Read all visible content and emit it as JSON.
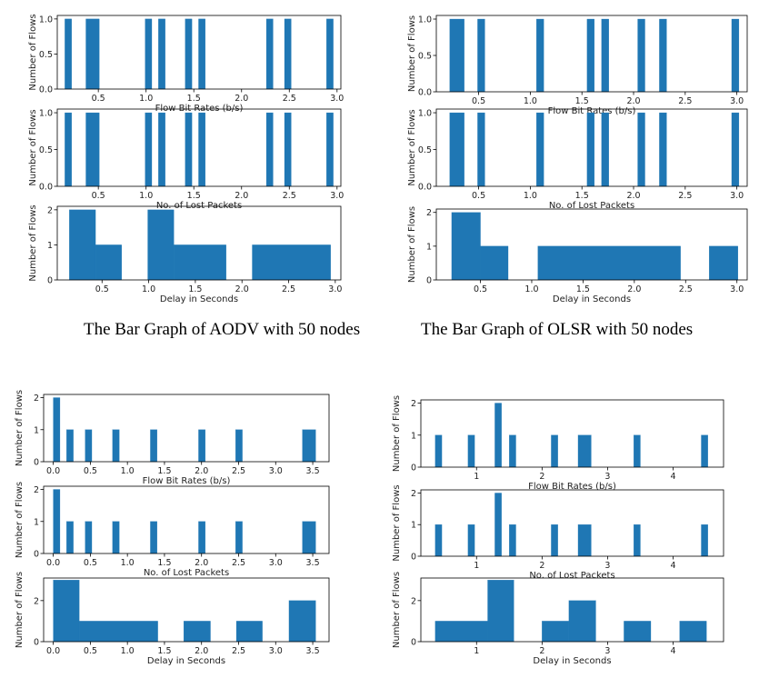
{
  "captions": {
    "aodv50": "The Bar Graph of AODV with 50 nodes",
    "olsr50": "The Bar Graph of OLSR with 50 nodes"
  },
  "chart_data": [
    {
      "id": "aodv50-flow",
      "type": "bar",
      "xlabel": "Flow Bit Rates (b/s)",
      "ylabel": "Number of Flows",
      "xlim": [
        0.07,
        3.04
      ],
      "ylim": [
        0,
        1.05
      ],
      "xticks": [
        0.5,
        1.0,
        1.5,
        2.0,
        2.5,
        3.0
      ],
      "xtick_labels": [
        "0.5",
        "1.0",
        "1.5",
        "2.0",
        "2.5",
        "3.0"
      ],
      "yticks": [
        0,
        0.5,
        1.0
      ],
      "ytick_labels": [
        "0.0",
        "0.5",
        "1.0"
      ],
      "bars": [
        [
          0.15,
          0.22,
          1
        ],
        [
          0.37,
          0.51,
          1
        ],
        [
          0.99,
          1.06,
          1
        ],
        [
          1.13,
          1.2,
          1
        ],
        [
          1.41,
          1.48,
          1
        ],
        [
          1.55,
          1.62,
          1
        ],
        [
          2.26,
          2.33,
          1
        ],
        [
          2.45,
          2.52,
          1
        ],
        [
          2.89,
          2.96,
          1
        ]
      ]
    },
    {
      "id": "aodv50-lost",
      "type": "bar",
      "xlabel": "No. of Lost Packets",
      "ylabel": "Number of Flows",
      "xlim": [
        0.07,
        3.04
      ],
      "ylim": [
        0,
        1.05
      ],
      "xticks": [
        0.5,
        1.0,
        1.5,
        2.0,
        2.5,
        3.0
      ],
      "xtick_labels": [
        "0.5",
        "1.0",
        "1.5",
        "2.0",
        "2.5",
        "3.0"
      ],
      "yticks": [
        0,
        0.5,
        1.0
      ],
      "ytick_labels": [
        "0.0",
        "0.5",
        "1.0"
      ],
      "bars": [
        [
          0.15,
          0.22,
          1
        ],
        [
          0.37,
          0.51,
          1
        ],
        [
          0.99,
          1.06,
          1
        ],
        [
          1.13,
          1.2,
          1
        ],
        [
          1.41,
          1.48,
          1
        ],
        [
          1.55,
          1.62,
          1
        ],
        [
          2.26,
          2.33,
          1
        ],
        [
          2.45,
          2.52,
          1
        ],
        [
          2.89,
          2.96,
          1
        ]
      ]
    },
    {
      "id": "aodv50-delay",
      "type": "bar",
      "xlabel": "Delay in Seconds",
      "ylabel": "Number of Flows",
      "xlim": [
        0.02,
        3.06
      ],
      "ylim": [
        0,
        2.1
      ],
      "xticks": [
        0.5,
        1.0,
        1.5,
        2.0,
        2.5,
        3.0
      ],
      "xtick_labels": [
        "0.5",
        "1.0",
        "1.5",
        "2.0",
        "2.5",
        "3.0"
      ],
      "yticks": [
        0,
        1,
        2
      ],
      "ytick_labels": [
        "0",
        "1",
        "2"
      ],
      "bars": [
        [
          0.15,
          0.43,
          2
        ],
        [
          0.43,
          0.71,
          1
        ],
        [
          0.99,
          1.27,
          2
        ],
        [
          1.27,
          1.83,
          1
        ],
        [
          2.11,
          2.95,
          1
        ]
      ]
    },
    {
      "id": "olsr50-flow",
      "type": "bar",
      "xlabel": "Flow Bit Rates (b/s)",
      "ylabel": "Number of Flows",
      "xlim": [
        0.09,
        3.1
      ],
      "ylim": [
        0,
        1.05
      ],
      "xticks": [
        0.5,
        1.0,
        1.5,
        2.0,
        2.5,
        3.0
      ],
      "xtick_labels": [
        "0.5",
        "1.0",
        "1.5",
        "2.0",
        "2.5",
        "3.0"
      ],
      "yticks": [
        0,
        0.5,
        1.0
      ],
      "ytick_labels": [
        "0.0",
        "0.5",
        "1.0"
      ],
      "bars": [
        [
          0.22,
          0.36,
          1
        ],
        [
          0.49,
          0.56,
          1
        ],
        [
          1.06,
          1.13,
          1
        ],
        [
          1.55,
          1.62,
          1
        ],
        [
          1.69,
          1.76,
          1
        ],
        [
          2.04,
          2.11,
          1
        ],
        [
          2.25,
          2.32,
          1
        ],
        [
          2.95,
          3.02,
          1
        ]
      ]
    },
    {
      "id": "olsr50-lost",
      "type": "bar",
      "xlabel": "No. of Lost Packets",
      "ylabel": "Number of Flows",
      "xlim": [
        0.09,
        3.1
      ],
      "ylim": [
        0,
        1.05
      ],
      "xticks": [
        0.5,
        1.0,
        1.5,
        2.0,
        2.5,
        3.0
      ],
      "xtick_labels": [
        "0.5",
        "1.0",
        "1.5",
        "2.0",
        "2.5",
        "3.0"
      ],
      "yticks": [
        0,
        0.5,
        1.0
      ],
      "ytick_labels": [
        "0.0",
        "0.5",
        "1.0"
      ],
      "bars": [
        [
          0.22,
          0.36,
          1
        ],
        [
          0.49,
          0.56,
          1
        ],
        [
          1.06,
          1.13,
          1
        ],
        [
          1.55,
          1.62,
          1
        ],
        [
          1.69,
          1.76,
          1
        ],
        [
          2.04,
          2.11,
          1
        ],
        [
          2.25,
          2.32,
          1
        ],
        [
          2.95,
          3.02,
          1
        ]
      ]
    },
    {
      "id": "olsr50-delay",
      "type": "bar",
      "xlabel": "Delay in Seconds",
      "ylabel": "Number of Flows",
      "xlim": [
        0.07,
        3.1
      ],
      "ylim": [
        0,
        2.1
      ],
      "xticks": [
        0.5,
        1.0,
        1.5,
        2.0,
        2.5,
        3.0
      ],
      "xtick_labels": [
        "0.5",
        "1.0",
        "1.5",
        "2.0",
        "2.5",
        "3.0"
      ],
      "yticks": [
        0,
        1,
        2
      ],
      "ytick_labels": [
        "0",
        "1",
        "2"
      ],
      "bars": [
        [
          0.22,
          0.5,
          2
        ],
        [
          0.5,
          0.77,
          1
        ],
        [
          1.06,
          2.45,
          1
        ],
        [
          2.73,
          3.01,
          1
        ]
      ]
    },
    {
      "id": "aodv100-flow",
      "type": "bar",
      "xlabel": "Flow Bit Rates (b/s)",
      "ylabel": "Number of Flows",
      "xlim": [
        -0.13,
        3.72
      ],
      "ylim": [
        0,
        2.1
      ],
      "xticks": [
        0,
        0.5,
        1.0,
        1.5,
        2.0,
        2.5,
        3.0,
        3.5
      ],
      "xtick_labels": [
        "0.0",
        "0.5",
        "1.0",
        "1.5",
        "2.0",
        "2.5",
        "3.0",
        "3.5"
      ],
      "yticks": [
        0,
        1,
        2
      ],
      "ytick_labels": [
        "0",
        "1",
        "2"
      ],
      "bars": [
        [
          0.0,
          0.09,
          2
        ],
        [
          0.18,
          0.27,
          1
        ],
        [
          0.43,
          0.52,
          1
        ],
        [
          0.8,
          0.89,
          1
        ],
        [
          1.31,
          1.4,
          1
        ],
        [
          1.96,
          2.05,
          1
        ],
        [
          2.46,
          2.55,
          1
        ],
        [
          3.36,
          3.54,
          1
        ]
      ]
    },
    {
      "id": "aodv100-lost",
      "type": "bar",
      "xlabel": "No. of Lost Packets",
      "ylabel": "Number of Flows",
      "xlim": [
        -0.13,
        3.72
      ],
      "ylim": [
        0,
        2.1
      ],
      "xticks": [
        0,
        0.5,
        1.0,
        1.5,
        2.0,
        2.5,
        3.0,
        3.5
      ],
      "xtick_labels": [
        "0.0",
        "0.5",
        "1.0",
        "1.5",
        "2.0",
        "2.5",
        "3.0",
        "3.5"
      ],
      "yticks": [
        0,
        1,
        2
      ],
      "ytick_labels": [
        "0",
        "1",
        "2"
      ],
      "bars": [
        [
          0.0,
          0.09,
          2
        ],
        [
          0.18,
          0.27,
          1
        ],
        [
          0.43,
          0.52,
          1
        ],
        [
          0.8,
          0.89,
          1
        ],
        [
          1.31,
          1.4,
          1
        ],
        [
          1.96,
          2.05,
          1
        ],
        [
          2.46,
          2.55,
          1
        ],
        [
          3.36,
          3.54,
          1
        ]
      ]
    },
    {
      "id": "aodv100-delay",
      "type": "bar",
      "xlabel": "Delay in Seconds",
      "ylabel": "Number of Flows",
      "xlim": [
        -0.13,
        3.72
      ],
      "ylim": [
        0,
        3.1
      ],
      "xticks": [
        0,
        0.5,
        1.0,
        1.5,
        2.0,
        2.5,
        3.0,
        3.5
      ],
      "xtick_labels": [
        "0.0",
        "0.5",
        "1.0",
        "1.5",
        "2.0",
        "2.5",
        "3.0",
        "3.5"
      ],
      "yticks": [
        0,
        2
      ],
      "ytick_labels": [
        "0",
        "2"
      ],
      "bars": [
        [
          0.0,
          0.35,
          3
        ],
        [
          0.35,
          1.41,
          1
        ],
        [
          1.76,
          2.12,
          1
        ],
        [
          2.47,
          2.82,
          1
        ],
        [
          3.18,
          3.54,
          2
        ]
      ]
    },
    {
      "id": "olsr100-flow",
      "type": "bar",
      "xlabel": "Flow Bit Rates (b/s)",
      "ylabel": "Number of Flows",
      "xlim": [
        0.15,
        4.77
      ],
      "ylim": [
        0,
        2.1
      ],
      "xticks": [
        1,
        2,
        3,
        4
      ],
      "xtick_labels": [
        "1",
        "2",
        "3",
        "4"
      ],
      "yticks": [
        0,
        1,
        2
      ],
      "ytick_labels": [
        "0",
        "1",
        "2"
      ],
      "bars": [
        [
          0.37,
          0.47,
          1
        ],
        [
          0.87,
          0.97,
          1
        ],
        [
          1.28,
          1.38,
          2
        ],
        [
          1.5,
          1.6,
          1
        ],
        [
          2.14,
          2.24,
          1
        ],
        [
          2.55,
          2.75,
          1
        ],
        [
          3.4,
          3.5,
          1
        ],
        [
          4.43,
          4.53,
          1
        ]
      ]
    },
    {
      "id": "olsr100-lost",
      "type": "bar",
      "xlabel": "No. of Lost Packets",
      "ylabel": "Number of Flows",
      "xlim": [
        0.15,
        4.77
      ],
      "ylim": [
        0,
        2.1
      ],
      "xticks": [
        1,
        2,
        3,
        4
      ],
      "xtick_labels": [
        "1",
        "2",
        "3",
        "4"
      ],
      "yticks": [
        0,
        1,
        2
      ],
      "ytick_labels": [
        "0",
        "1",
        "2"
      ],
      "bars": [
        [
          0.37,
          0.47,
          1
        ],
        [
          0.87,
          0.97,
          1
        ],
        [
          1.28,
          1.38,
          2
        ],
        [
          1.5,
          1.6,
          1
        ],
        [
          2.14,
          2.24,
          1
        ],
        [
          2.55,
          2.75,
          1
        ],
        [
          3.4,
          3.5,
          1
        ],
        [
          4.43,
          4.53,
          1
        ]
      ]
    },
    {
      "id": "olsr100-delay",
      "type": "bar",
      "xlabel": "Delay in Seconds",
      "ylabel": "Number of Flows",
      "xlim": [
        0.15,
        4.77
      ],
      "ylim": [
        0,
        3.1
      ],
      "xticks": [
        1,
        2,
        3,
        4
      ],
      "xtick_labels": [
        "1",
        "2",
        "3",
        "4"
      ],
      "yticks": [
        0,
        2
      ],
      "ytick_labels": [
        "0",
        "2"
      ],
      "bars": [
        [
          0.37,
          1.17,
          1
        ],
        [
          1.17,
          1.57,
          3
        ],
        [
          2.0,
          2.41,
          1
        ],
        [
          2.41,
          2.82,
          2
        ],
        [
          3.25,
          3.66,
          1
        ],
        [
          4.1,
          4.51,
          1
        ]
      ]
    }
  ]
}
